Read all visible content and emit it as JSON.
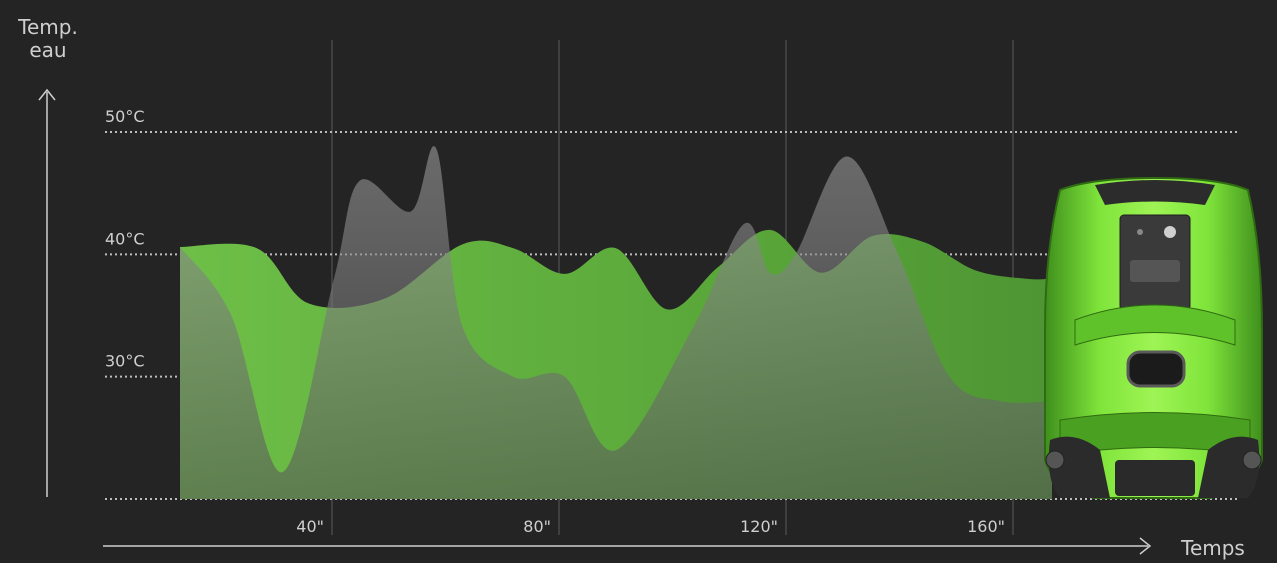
{
  "chart_data": {
    "type": "area",
    "y_axis_label": [
      "Temp.",
      "eau"
    ],
    "x_axis_label": "Temps",
    "y_ticks": [
      "50°C",
      "40°C",
      "30°C"
    ],
    "y_tick_values": [
      50,
      40,
      30
    ],
    "x_ticks": [
      "40\"",
      "80\"",
      "120\"",
      "160\""
    ],
    "x_tick_values": [
      40,
      80,
      120,
      160
    ],
    "xlim": [
      0,
      190
    ],
    "ylim": [
      20,
      50
    ],
    "grid": "dotted horizontal, vertical at x ticks",
    "series": [
      {
        "color": "#6cbd45",
        "x": [
          0,
          15,
          25,
          40,
          55,
          65,
          75,
          85,
          95,
          105,
          115,
          125,
          135,
          145,
          155,
          165,
          170
        ],
        "values": [
          40.6,
          40.5,
          36,
          36.4,
          40.8,
          40.5,
          38.4,
          40.5,
          35.5,
          39,
          42,
          38.5,
          41.5,
          41,
          38.7,
          38,
          38
        ]
      },
      {
        "color": "#8c8c8c",
        "x": [
          0,
          10,
          20,
          30,
          35,
          45,
          50,
          55,
          65,
          75,
          85,
          100,
          110,
          115,
          120,
          130,
          140,
          150,
          160,
          170
        ],
        "values": [
          40.6,
          35,
          22.2,
          38,
          46,
          43.5,
          48.6,
          34.2,
          30,
          30,
          24,
          34,
          42.5,
          38.5,
          40,
          48,
          40,
          30,
          28,
          28
        ]
      }
    ]
  },
  "colors": {
    "background": "#242424",
    "green": "#6cbd45",
    "gray": "#8c8c8c",
    "axis": "#cfcfcf"
  },
  "device": {
    "name": "robot-image"
  }
}
